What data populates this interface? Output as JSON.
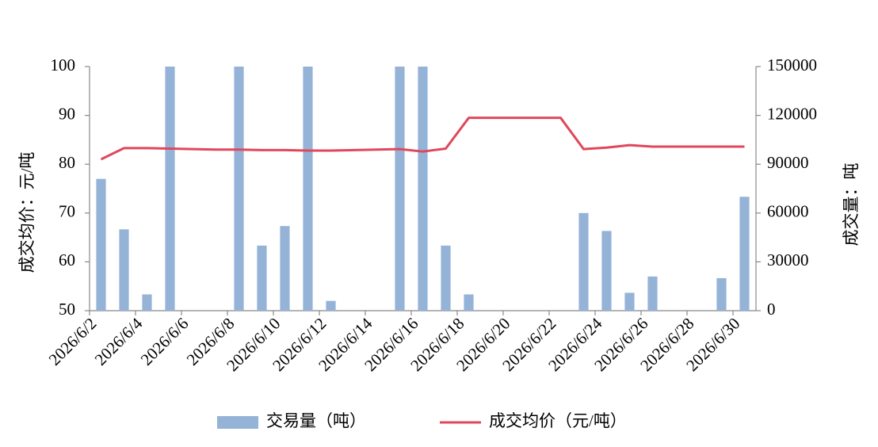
{
  "chart_data": {
    "type": "bar-line",
    "categories": [
      "2026/6/2",
      null,
      "2026/6/4",
      null,
      "2026/6/6",
      null,
      "2026/6/8",
      null,
      "2026/6/10",
      null,
      "2026/6/12",
      null,
      "2026/6/14",
      null,
      "2026/6/16",
      null,
      "2026/6/18",
      null,
      "2026/6/20",
      null,
      "2026/6/22",
      null,
      "2026/6/24",
      null,
      "2026/6/26",
      null,
      "2026/6/28",
      null,
      "2026/6/30"
    ],
    "series": [
      {
        "name": "交易量（吨）",
        "type": "bar",
        "axis": "y2",
        "color": "#95b3d7",
        "values": [
          81000,
          50000,
          10000,
          150000,
          0,
          0,
          150000,
          40000,
          52000,
          150000,
          6000,
          0,
          0,
          150000,
          150000,
          40000,
          10000,
          0,
          0,
          0,
          0,
          60000,
          49000,
          11000,
          21000,
          0,
          0,
          20000,
          70000
        ]
      },
      {
        "name": "成交均价（元/吨）",
        "type": "line",
        "axis": "y",
        "color": "#e0475b",
        "values": [
          81.0,
          83.3,
          83.3,
          83.2,
          83.1,
          83.0,
          83.0,
          82.9,
          82.9,
          82.8,
          82.8,
          82.9,
          83.0,
          83.1,
          82.6,
          83.2,
          89.5,
          89.5,
          89.5,
          89.5,
          89.5,
          83.1,
          83.4,
          83.9,
          83.6,
          83.6,
          83.6,
          83.6,
          83.6
        ]
      }
    ],
    "y_label": "成交均价：元/吨",
    "y2_label": "成交量：吨",
    "ylim": [
      50,
      100
    ],
    "yticks": [
      50,
      60,
      70,
      80,
      90,
      100
    ],
    "y2lim": [
      0,
      150000
    ],
    "y2ticks": [
      0,
      30000,
      60000,
      90000,
      120000,
      150000
    ],
    "grid": false,
    "legend": "bottom"
  }
}
